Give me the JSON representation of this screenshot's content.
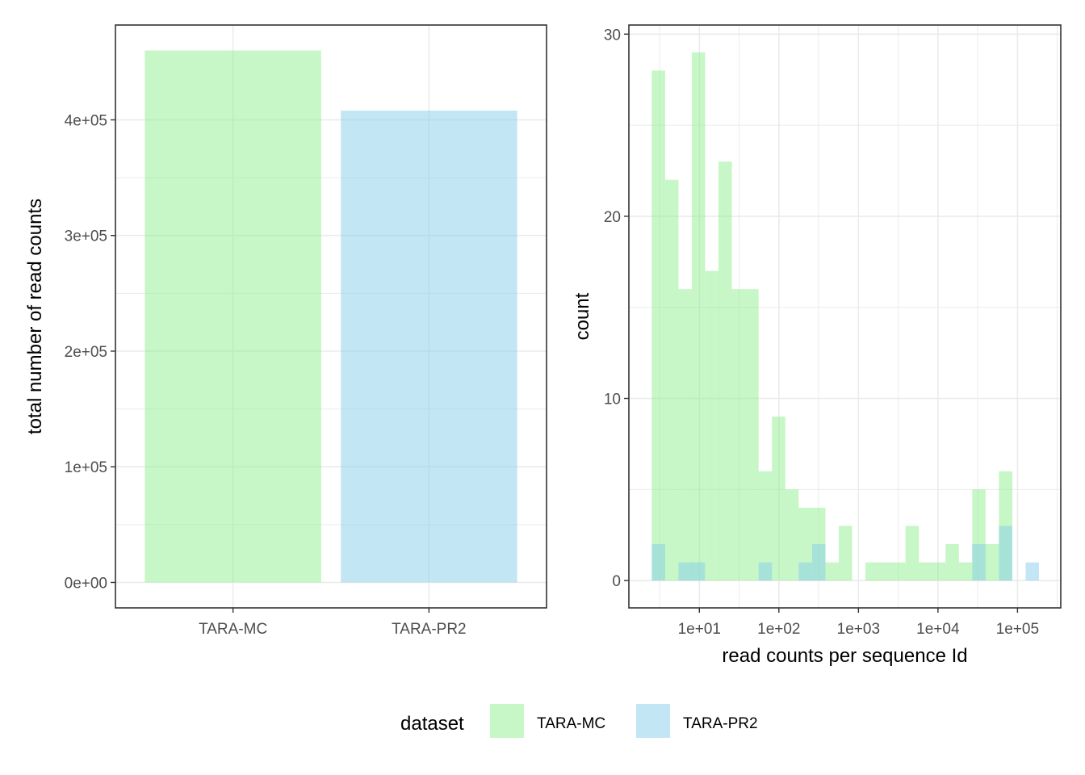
{
  "colors": {
    "TARA-MC": "#90EE90",
    "TARA-PR2": "#87CEEB",
    "panel_border": "#333333",
    "grid": "#ebebeb"
  },
  "fill_alpha": 0.5,
  "legend": {
    "title": "dataset",
    "position": "bottom",
    "entries": [
      "TARA-MC",
      "TARA-PR2"
    ]
  },
  "chart_data": [
    {
      "type": "bar",
      "categories": [
        "TARA-MC",
        "TARA-PR2"
      ],
      "values": [
        460000,
        408000
      ],
      "xlabel": "",
      "ylabel": "total number of read counts",
      "ylim": [
        -22000,
        482000
      ],
      "yticks": [
        0,
        100000,
        200000,
        300000,
        400000
      ],
      "ytick_labels": [
        "0e+00",
        "1e+05",
        "2e+05",
        "3e+05",
        "4e+05"
      ],
      "grid": true
    },
    {
      "type": "histogram",
      "x_scale": "log10",
      "xlabel": "read counts per sequence Id",
      "ylabel": "count",
      "xlim": [
        1.3,
        350000
      ],
      "ylim": [
        -1.5,
        30.5
      ],
      "xticks": [
        10,
        100,
        1000,
        10000,
        100000
      ],
      "xtick_labels": [
        "1e+01",
        "1e+02",
        "1e+03",
        "1e+04",
        "1e+05"
      ],
      "yticks": [
        0,
        10,
        20,
        30
      ],
      "ytick_labels": [
        "0",
        "10",
        "20",
        "30"
      ],
      "grid": true,
      "bin_centers": [
        3.06,
        4.5,
        6.63,
        9.75,
        14.4,
        21.1,
        31.1,
        45.8,
        67.4,
        99.2,
        146,
        215,
        317,
        466,
        686,
        1010,
        1486,
        2187,
        3219,
        4738,
        6973,
        10263,
        15105,
        22231,
        32720,
        48156,
        70875,
        104314,
        153528
      ],
      "series": [
        {
          "name": "TARA-MC",
          "values": [
            28,
            22,
            16,
            29,
            17,
            23,
            16,
            16,
            6,
            9,
            5,
            4,
            4,
            1,
            3,
            0,
            1,
            1,
            1,
            3,
            1,
            1,
            2,
            1,
            5,
            2,
            6,
            0,
            0
          ]
        },
        {
          "name": "TARA-PR2",
          "values": [
            2,
            0,
            1,
            1,
            0,
            0,
            0,
            0,
            1,
            0,
            0,
            1,
            2,
            0,
            0,
            0,
            0,
            0,
            0,
            0,
            0,
            0,
            0,
            0,
            2,
            0,
            3,
            0,
            1
          ]
        }
      ]
    }
  ]
}
